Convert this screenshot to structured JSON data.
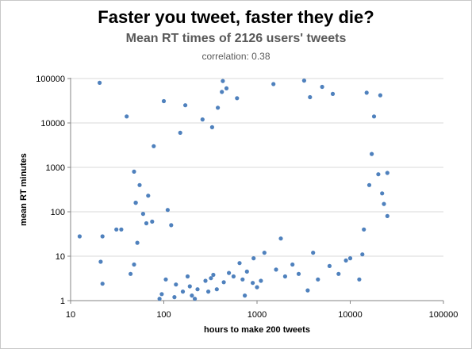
{
  "chart_data": {
    "type": "scatter",
    "title": "Faster you tweet, faster they die?",
    "subtitle": "Mean RT times of 2126 users' tweets",
    "annotation": "correlation: 0.38",
    "xlabel": "hours to make 200 tweets",
    "ylabel": "mean RT minutes",
    "x_scale": "log",
    "y_scale": "log",
    "xlim": [
      10,
      100000
    ],
    "ylim": [
      1,
      100000
    ],
    "x_ticks": [
      "10",
      "100",
      "1000",
      "10000",
      "100000"
    ],
    "y_ticks": [
      "1",
      "10",
      "100",
      "1000",
      "10000",
      "100000"
    ],
    "grid": "horizontal",
    "marker_color": "#4F81BD",
    "points": [
      [
        12.5,
        28
      ],
      [
        20.5,
        80000
      ],
      [
        21,
        7.5
      ],
      [
        22,
        28
      ],
      [
        22,
        2.4
      ],
      [
        31,
        40
      ],
      [
        35,
        40
      ],
      [
        40,
        14000
      ],
      [
        44,
        4
      ],
      [
        48,
        6.5
      ],
      [
        50,
        160
      ],
      [
        50,
        160
      ],
      [
        52,
        20
      ],
      [
        48,
        800
      ],
      [
        55,
        400
      ],
      [
        60,
        90
      ],
      [
        65,
        55
      ],
      [
        68,
        230
      ],
      [
        75,
        60
      ],
      [
        78,
        3000
      ],
      [
        90,
        1.1
      ],
      [
        95,
        1.4
      ],
      [
        100,
        31000
      ],
      [
        105,
        3
      ],
      [
        110,
        110
      ],
      [
        120,
        50
      ],
      [
        130,
        1.2
      ],
      [
        135,
        2.3
      ],
      [
        150,
        6000
      ],
      [
        160,
        1.6
      ],
      [
        170,
        25000
      ],
      [
        180,
        3.5
      ],
      [
        190,
        2.1
      ],
      [
        200,
        1.3
      ],
      [
        215,
        1.1
      ],
      [
        230,
        1.8
      ],
      [
        260,
        12000
      ],
      [
        280,
        2.8
      ],
      [
        300,
        1.6
      ],
      [
        320,
        3.2
      ],
      [
        330,
        8000
      ],
      [
        340,
        3.8
      ],
      [
        370,
        1.8
      ],
      [
        380,
        22000
      ],
      [
        420,
        50000
      ],
      [
        430,
        88000
      ],
      [
        440,
        2.6
      ],
      [
        470,
        60000
      ],
      [
        500,
        4.2
      ],
      [
        560,
        3.5
      ],
      [
        610,
        36000
      ],
      [
        650,
        7
      ],
      [
        700,
        3
      ],
      [
        740,
        1.3
      ],
      [
        780,
        4.5
      ],
      [
        900,
        2.5
      ],
      [
        920,
        9
      ],
      [
        1000,
        2
      ],
      [
        1100,
        2.8
      ],
      [
        1200,
        12
      ],
      [
        1500,
        75000
      ],
      [
        1600,
        5
      ],
      [
        1800,
        25
      ],
      [
        2000,
        3.5
      ],
      [
        2400,
        6.5
      ],
      [
        2800,
        4
      ],
      [
        3200,
        90000
      ],
      [
        3500,
        1.7
      ],
      [
        3700,
        38000
      ],
      [
        4000,
        12
      ],
      [
        4500,
        3
      ],
      [
        5000,
        65000
      ],
      [
        6000,
        6
      ],
      [
        6500,
        45000
      ],
      [
        7500,
        4
      ],
      [
        9000,
        8
      ],
      [
        10000,
        9
      ],
      [
        12500,
        3
      ],
      [
        15000,
        48000
      ],
      [
        18000,
        14000
      ],
      [
        20000,
        700
      ],
      [
        21000,
        42000
      ],
      [
        22000,
        260
      ],
      [
        23000,
        150
      ],
      [
        25000,
        80
      ],
      [
        25000,
        750
      ],
      [
        17000,
        2000
      ],
      [
        16000,
        400
      ],
      [
        14000,
        40
      ],
      [
        13500,
        11
      ]
    ]
  }
}
